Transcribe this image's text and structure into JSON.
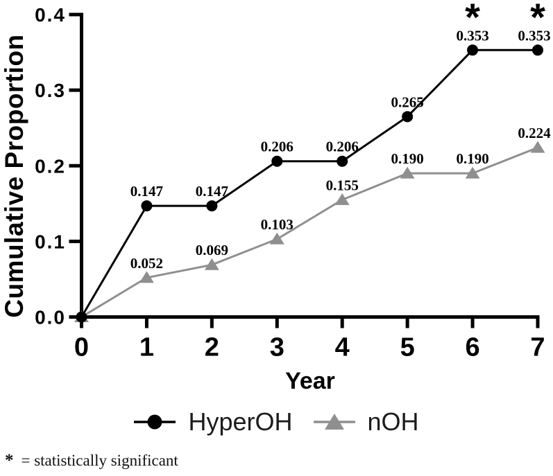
{
  "figure": {
    "footnote": {
      "symbol": "*",
      "text": "= statistically significant"
    }
  },
  "chart_data": {
    "type": "line",
    "title": "",
    "xlabel": "Year",
    "ylabel": "Cumulative Proportion",
    "x": [
      0,
      1,
      2,
      3,
      4,
      5,
      6,
      7
    ],
    "xlim": [
      0,
      7
    ],
    "ylim": [
      0.0,
      0.4
    ],
    "x_ticks": [
      "0",
      "1",
      "2",
      "3",
      "4",
      "5",
      "6",
      "7"
    ],
    "y_ticks": [
      "0.0",
      "0.1",
      "0.2",
      "0.3",
      "0.4"
    ],
    "grid": false,
    "legend_position": "bottom-center",
    "axis_color": "#000000",
    "series": [
      {
        "name": "HyperOH",
        "marker": "circle",
        "color": "#000000",
        "values": [
          0.0,
          0.147,
          0.147,
          0.206,
          0.206,
          0.265,
          0.353,
          0.353
        ],
        "point_labels": [
          "",
          "0.147",
          "0.147",
          "0.206",
          "0.206",
          "0.265",
          "0.353",
          "0.353"
        ]
      },
      {
        "name": "nOH",
        "marker": "triangle",
        "color": "#8f8f8f",
        "values": [
          0.0,
          0.052,
          0.069,
          0.103,
          0.155,
          0.19,
          0.19,
          0.224
        ],
        "point_labels": [
          "",
          "0.052",
          "0.069",
          "0.103",
          "0.155",
          "0.190",
          "0.190",
          "0.224"
        ]
      }
    ],
    "annotations": [
      {
        "symbol": "*",
        "x": 6
      },
      {
        "symbol": "*",
        "x": 7
      }
    ]
  }
}
